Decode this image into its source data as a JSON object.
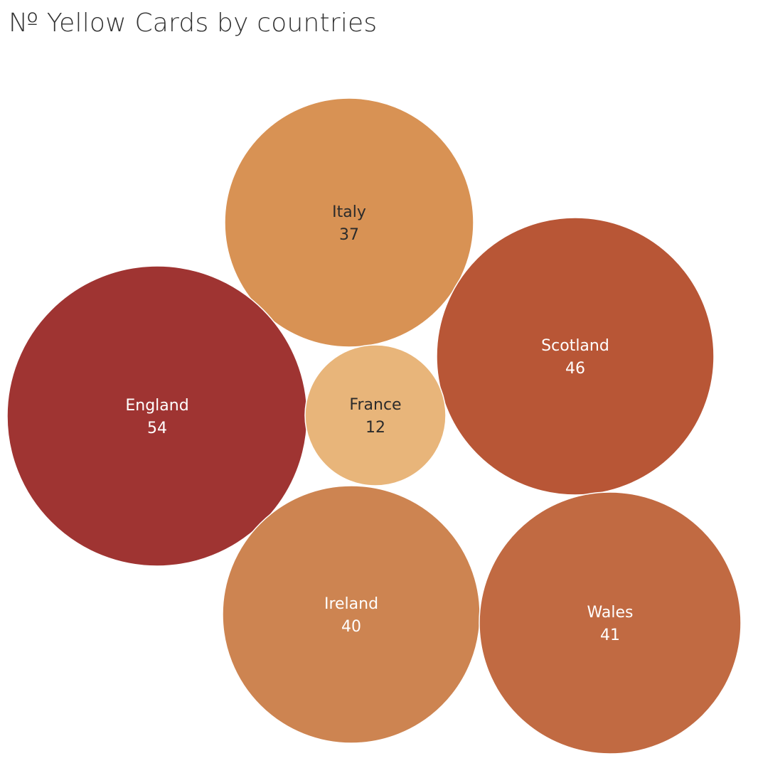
{
  "title": "№ Yellow Cards by countries",
  "chart_data": {
    "type": "bubble",
    "title": "№ Yellow Cards by countries",
    "items": [
      {
        "label": "Italy",
        "value": 37,
        "color": "#D89254",
        "text_color": "#2b2b2b"
      },
      {
        "label": "Scotland",
        "value": 46,
        "color": "#B85636",
        "text_color": "#ffffff"
      },
      {
        "label": "England",
        "value": 54,
        "color": "#9F3432",
        "text_color": "#ffffff"
      },
      {
        "label": "France",
        "value": 12,
        "color": "#E8B57A",
        "text_color": "#2b2b2b"
      },
      {
        "label": "Ireland",
        "value": 40,
        "color": "#CD8451",
        "text_color": "#ffffff"
      },
      {
        "label": "Wales",
        "value": 41,
        "color": "#C16A42",
        "text_color": "#ffffff"
      }
    ]
  }
}
